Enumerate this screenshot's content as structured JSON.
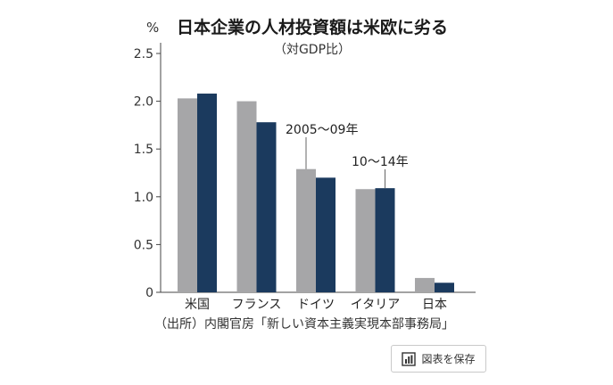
{
  "chart_data": {
    "type": "bar",
    "title": "日本企業の人材投資額は米欧に劣る",
    "subtitle": "（対GDP比）",
    "ylabel": "%",
    "ylim": [
      0,
      2.5
    ],
    "yticks": [
      "0",
      "0.5",
      "1.0",
      "1.5",
      "2.0",
      "2.5"
    ],
    "ytick_values": [
      0,
      0.5,
      1.0,
      1.5,
      2.0,
      2.5
    ],
    "categories": [
      "米国",
      "フランス",
      "ドイツ",
      "イタリア",
      "日本"
    ],
    "series": [
      {
        "name": "2005〜09年",
        "color": "#a6a6a8",
        "values": [
          2.03,
          2.0,
          1.29,
          1.08,
          0.15
        ]
      },
      {
        "name": "10〜14年",
        "color": "#1b3a5e",
        "values": [
          2.08,
          1.78,
          1.2,
          1.09,
          0.1
        ]
      }
    ],
    "annotations": [
      "2005〜09年",
      "10〜14年"
    ],
    "source": "（出所）内閣官房「新しい資本主義実現本部事務局」",
    "grid": false
  },
  "ui": {
    "save_label": "図表を保存",
    "save_icon": "bar-chart-icon"
  }
}
